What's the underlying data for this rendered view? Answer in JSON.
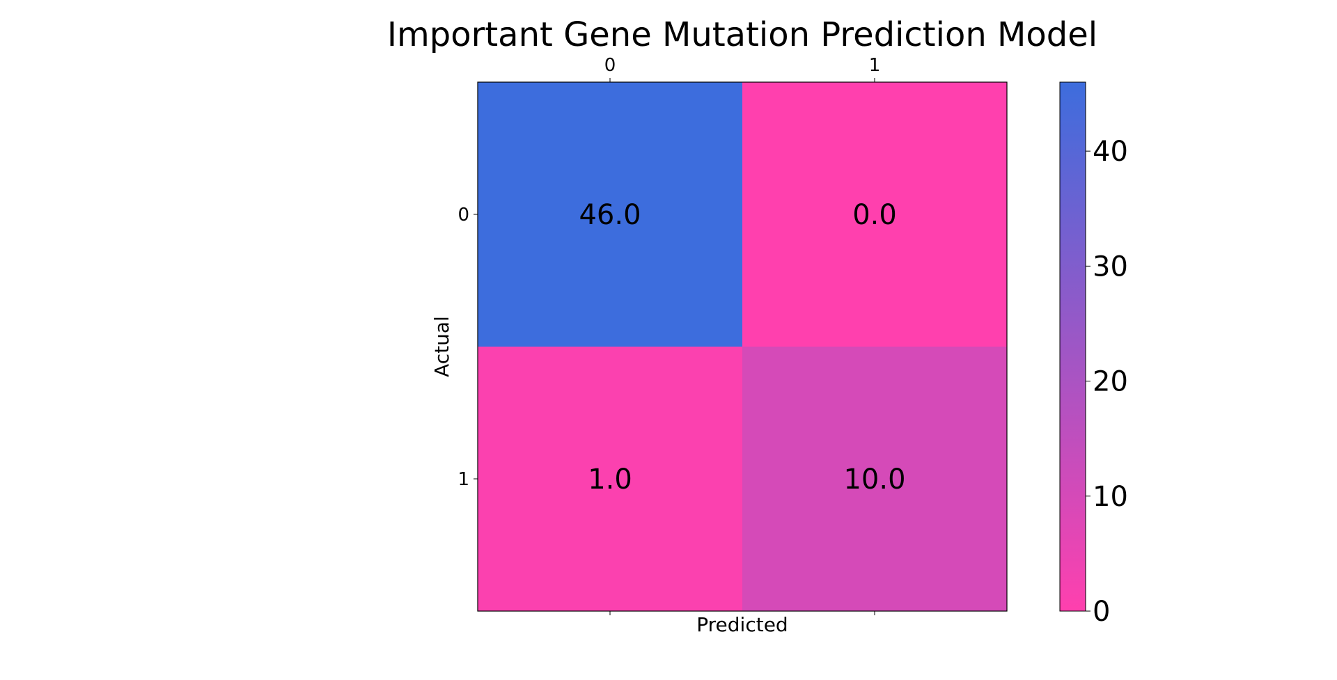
{
  "chart_data": {
    "type": "heatmap",
    "title": "Important Gene Mutation Prediction Model",
    "xlabel": "Predicted",
    "ylabel": "Actual",
    "x_categories": [
      "0",
      "1"
    ],
    "y_categories": [
      "0",
      "1"
    ],
    "values": [
      [
        46.0,
        0.0
      ],
      [
        1.0,
        10.0
      ]
    ],
    "cell_labels": [
      [
        "46.0",
        "0.0"
      ],
      [
        "1.0",
        "10.0"
      ]
    ],
    "colorbar": {
      "range": [
        0,
        46
      ],
      "ticks": [
        0,
        10,
        20,
        30,
        40
      ],
      "tick_labels": [
        "0",
        "10",
        "20",
        "30",
        "40"
      ]
    },
    "colormap": {
      "low": "#ff40ae",
      "high": "#3d6ddd"
    },
    "x_tick_position": "top",
    "grid": false
  }
}
